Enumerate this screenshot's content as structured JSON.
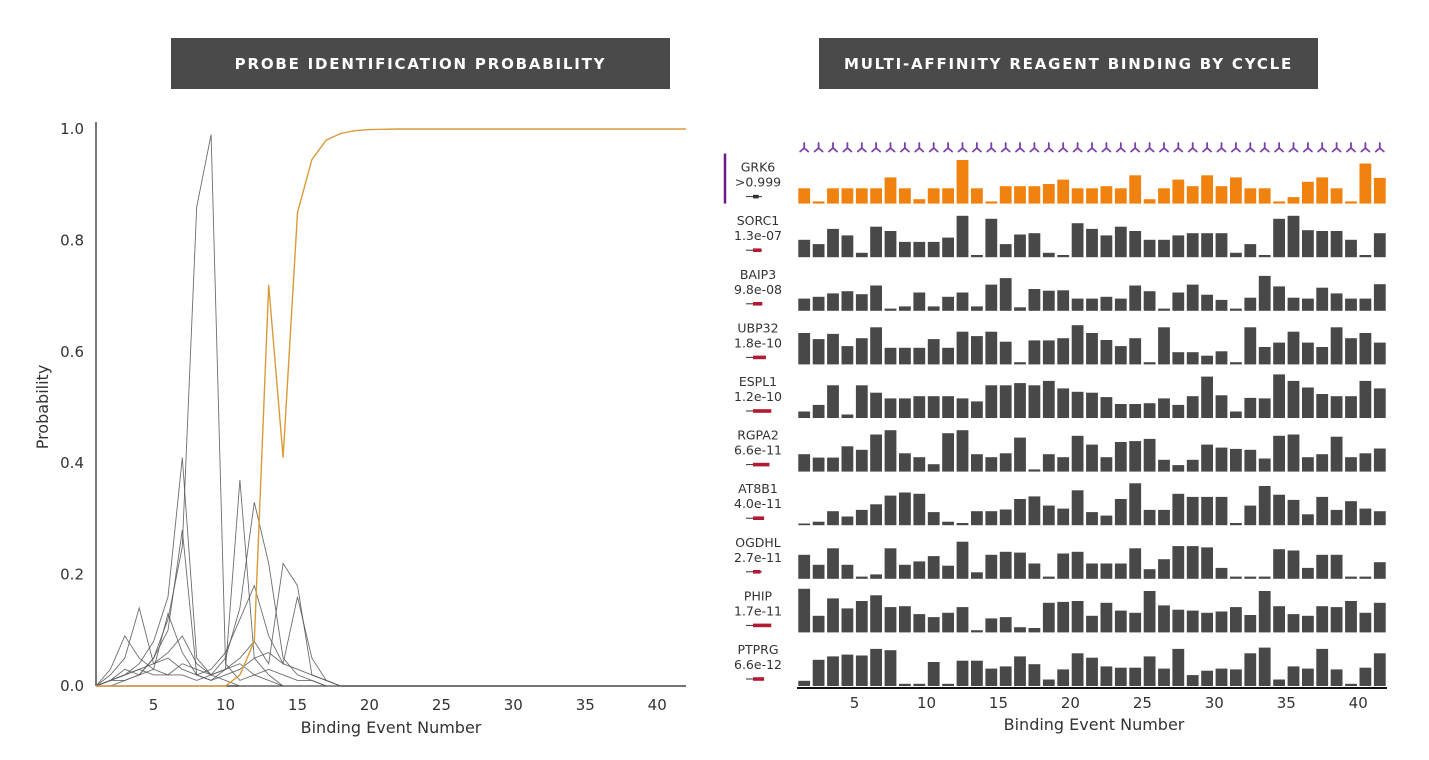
{
  "left_panel": {
    "banner": "PROBE IDENTIFICATION PROBABILITY"
  },
  "right_panel": {
    "banner": "MULTI-AFFINITY REAGENT BINDING BY CYCLE"
  },
  "colors": {
    "banner_bg": "#4a4a4a",
    "highlight": "#f0820f",
    "line_highlight": "#d99b3a",
    "bar_default": "#484848",
    "reagent_icon": "#7a3fa8",
    "selection_mark": "#6a1a8a",
    "pval_marker": "#b31b34"
  },
  "chart_data": [
    {
      "type": "line",
      "title": "PROBE IDENTIFICATION PROBABILITY",
      "xlabel": "Binding Event Number",
      "ylabel": "Probability",
      "xlim": [
        1,
        42
      ],
      "ylim": [
        0,
        1.0
      ],
      "xticks": [
        5,
        10,
        15,
        20,
        25,
        30,
        35,
        40
      ],
      "yticks": [
        0.0,
        0.2,
        0.4,
        0.6,
        0.8,
        1.0
      ],
      "highlight_series": {
        "name": "GRK6",
        "x": [
          1,
          2,
          3,
          4,
          5,
          6,
          7,
          8,
          9,
          10,
          11,
          12,
          13,
          14,
          15,
          16,
          17,
          18,
          19,
          20,
          21,
          22,
          23,
          24,
          25,
          26,
          27,
          28,
          29,
          30,
          31,
          32,
          33,
          34,
          35,
          36,
          37,
          38,
          39,
          40,
          41,
          42
        ],
        "y": [
          0,
          0,
          0,
          0,
          0,
          0,
          0,
          0,
          0,
          0,
          0.02,
          0.08,
          0.72,
          0.41,
          0.85,
          0.945,
          0.98,
          0.992,
          0.997,
          0.999,
          0.9995,
          1,
          1,
          1,
          1,
          1,
          1,
          1,
          1,
          1,
          1,
          1,
          1,
          1,
          1,
          1,
          1,
          1,
          1,
          1,
          1,
          1
        ]
      },
      "background_series": [
        {
          "x": [
            1,
            2,
            3,
            4,
            5,
            6,
            7,
            8,
            9,
            10,
            11,
            12,
            13,
            14,
            15,
            16,
            17,
            18
          ],
          "y": [
            0,
            0.01,
            0.03,
            0.02,
            0.05,
            0.12,
            0.25,
            0.86,
            0.99,
            0.04,
            0.01,
            0.02,
            0.01,
            0,
            0,
            0,
            0,
            0
          ]
        },
        {
          "x": [
            1,
            2,
            3,
            4,
            5,
            6,
            7,
            8,
            9,
            10,
            11,
            12,
            13,
            14,
            15,
            16,
            17,
            18
          ],
          "y": [
            0,
            0.01,
            0.02,
            0.04,
            0.08,
            0.16,
            0.41,
            0.05,
            0.02,
            0.01,
            0,
            0,
            0,
            0,
            0,
            0,
            0,
            0
          ]
        },
        {
          "x": [
            1,
            2,
            3,
            4,
            5,
            6,
            7,
            8,
            9,
            10,
            11,
            12,
            13,
            14,
            15,
            16,
            17,
            18
          ],
          "y": [
            0,
            0,
            0.01,
            0.02,
            0.05,
            0.1,
            0.28,
            0.02,
            0.01,
            0.03,
            0.37,
            0.05,
            0.02,
            0,
            0,
            0,
            0,
            0
          ]
        },
        {
          "x": [
            1,
            2,
            3,
            4,
            5,
            6,
            7,
            8,
            9,
            10,
            11,
            12,
            13,
            14,
            15,
            16,
            17,
            18
          ],
          "y": [
            0,
            0.01,
            0.02,
            0.03,
            0.02,
            0.02,
            0.04,
            0.03,
            0.02,
            0.05,
            0.14,
            0.33,
            0.22,
            0.05,
            0.02,
            0.01,
            0,
            0
          ]
        },
        {
          "x": [
            1,
            2,
            3,
            4,
            5,
            6,
            7,
            8,
            9,
            10,
            11,
            12,
            13,
            14,
            15,
            16,
            17,
            18
          ],
          "y": [
            0,
            0.02,
            0.05,
            0.14,
            0.04,
            0.06,
            0.09,
            0.04,
            0.02,
            0.03,
            0.05,
            0.08,
            0.04,
            0.22,
            0.18,
            0.02,
            0.01,
            0
          ]
        },
        {
          "x": [
            1,
            2,
            3,
            4,
            5,
            6,
            7,
            8,
            9,
            10,
            11,
            12,
            13,
            14,
            15,
            16,
            17,
            18
          ],
          "y": [
            0,
            0.03,
            0.09,
            0.05,
            0.03,
            0.13,
            0.06,
            0.02,
            0.03,
            0.06,
            0.12,
            0.18,
            0.09,
            0.04,
            0.16,
            0.05,
            0.01,
            0
          ]
        },
        {
          "x": [
            1,
            2,
            3,
            4,
            5,
            6,
            7,
            8,
            9,
            10,
            11,
            12,
            13,
            14,
            15,
            16,
            17,
            18
          ],
          "y": [
            0,
            0.01,
            0.02,
            0.03,
            0.04,
            0.05,
            0.03,
            0.02,
            0.01,
            0.02,
            0.03,
            0.05,
            0.06,
            0.04,
            0.03,
            0.02,
            0.01,
            0
          ]
        },
        {
          "x": [
            1,
            2,
            3,
            4,
            5,
            6,
            7,
            8,
            9,
            10,
            11,
            12,
            13,
            14,
            15,
            16,
            17,
            18
          ],
          "y": [
            0,
            0.01,
            0.01,
            0.02,
            0.03,
            0.02,
            0.02,
            0.01,
            0.02,
            0.03,
            0.04,
            0.02,
            0.03,
            0.02,
            0.01,
            0.01,
            0,
            0
          ]
        }
      ]
    },
    {
      "type": "bar",
      "title": "MULTI-AFFINITY REAGENT BINDING BY CYCLE",
      "xlabel": "Binding Event Number",
      "xlim": [
        1,
        42
      ],
      "xticks": [
        5,
        10,
        15,
        20,
        25,
        30,
        35,
        40
      ],
      "categories": [
        1,
        2,
        3,
        4,
        5,
        6,
        7,
        8,
        9,
        10,
        11,
        12,
        13,
        14,
        15,
        16,
        17,
        18,
        19,
        20,
        21,
        22,
        23,
        24,
        25,
        26,
        27,
        28,
        29,
        30,
        31,
        32,
        33,
        34,
        35,
        36,
        37,
        38,
        39,
        40,
        41
      ],
      "rows": [
        {
          "name": "GRK6",
          "pval": ">0.999",
          "highlight": true,
          "pval_marker": 0.15,
          "values": [
            0.35,
            0.05,
            0.35,
            0.35,
            0.35,
            0.35,
            0.6,
            0.35,
            0.1,
            0.35,
            0.35,
            1.0,
            0.35,
            0.05,
            0.4,
            0.4,
            0.4,
            0.45,
            0.55,
            0.35,
            0.35,
            0.4,
            0.35,
            0.65,
            0.1,
            0.35,
            0.55,
            0.4,
            0.65,
            0.4,
            0.6,
            0.35,
            0.35,
            0.05,
            0.15,
            0.5,
            0.6,
            0.35,
            0.05,
            0.92,
            0.59
          ]
        },
        {
          "name": "SORC1",
          "pval": "1.3e-07",
          "highlight": false,
          "pval_marker": 0.3,
          "values": [
            0.4,
            0.3,
            0.65,
            0.5,
            0.1,
            0.7,
            0.6,
            0.35,
            0.35,
            0.35,
            0.45,
            0.95,
            0.05,
            0.88,
            0.3,
            0.52,
            0.55,
            0.1,
            0.05,
            0.78,
            0.65,
            0.5,
            0.7,
            0.6,
            0.4,
            0.4,
            0.5,
            0.55,
            0.55,
            0.55,
            0.1,
            0.3,
            0.05,
            0.88,
            0.95,
            0.62,
            0.6,
            0.6,
            0.4,
            0.05,
            0.55
          ]
        },
        {
          "name": "BAIP3",
          "pval": "9.8e-08",
          "highlight": false,
          "pval_marker": 0.35,
          "values": [
            0.28,
            0.32,
            0.4,
            0.45,
            0.38,
            0.58,
            0.05,
            0.1,
            0.42,
            0.1,
            0.32,
            0.42,
            0.1,
            0.6,
            0.75,
            0.08,
            0.5,
            0.46,
            0.47,
            0.28,
            0.28,
            0.32,
            0.28,
            0.58,
            0.45,
            0.05,
            0.42,
            0.6,
            0.37,
            0.25,
            0.05,
            0.3,
            0.8,
            0.56,
            0.3,
            0.28,
            0.53,
            0.4,
            0.28,
            0.28,
            0.61
          ]
        },
        {
          "name": "UBP32",
          "pval": "1.8e-10",
          "highlight": false,
          "pval_marker": 0.55,
          "values": [
            0.72,
            0.58,
            0.7,
            0.42,
            0.6,
            0.85,
            0.38,
            0.38,
            0.38,
            0.58,
            0.38,
            0.75,
            0.65,
            0.75,
            0.52,
            0.05,
            0.55,
            0.55,
            0.6,
            0.9,
            0.72,
            0.56,
            0.42,
            0.6,
            0.05,
            0.85,
            0.28,
            0.28,
            0.2,
            0.3,
            0.05,
            0.85,
            0.4,
            0.5,
            0.75,
            0.5,
            0.4,
            0.85,
            0.6,
            0.72,
            0.5
          ]
        },
        {
          "name": "ESPL1",
          "pval": "1.2e-10",
          "highlight": false,
          "pval_marker": 0.85,
          "values": [
            0.15,
            0.3,
            0.75,
            0.08,
            0.75,
            0.58,
            0.45,
            0.45,
            0.5,
            0.5,
            0.5,
            0.45,
            0.38,
            0.75,
            0.75,
            0.8,
            0.75,
            0.85,
            0.68,
            0.6,
            0.58,
            0.48,
            0.32,
            0.32,
            0.34,
            0.45,
            0.3,
            0.5,
            0.95,
            0.52,
            0.15,
            0.46,
            0.45,
            1.0,
            0.85,
            0.7,
            0.55,
            0.5,
            0.5,
            0.85,
            0.68
          ]
        },
        {
          "name": "RGPA2",
          "pval": "6.6e-11",
          "highlight": false,
          "pval_marker": 0.75,
          "values": [
            0.4,
            0.32,
            0.32,
            0.58,
            0.5,
            0.85,
            0.95,
            0.42,
            0.33,
            0.17,
            0.88,
            0.95,
            0.4,
            0.33,
            0.42,
            0.78,
            0.05,
            0.4,
            0.33,
            0.82,
            0.62,
            0.33,
            0.68,
            0.7,
            0.75,
            0.27,
            0.15,
            0.27,
            0.62,
            0.55,
            0.52,
            0.5,
            0.3,
            0.82,
            0.85,
            0.33,
            0.4,
            0.8,
            0.33,
            0.42,
            0.53
          ]
        },
        {
          "name": "AT8B1",
          "pval": "4.0e-11",
          "highlight": false,
          "pval_marker": 0.45,
          "values": [
            0.04,
            0.08,
            0.32,
            0.2,
            0.35,
            0.48,
            0.68,
            0.75,
            0.72,
            0.3,
            0.08,
            0.05,
            0.32,
            0.32,
            0.36,
            0.6,
            0.66,
            0.45,
            0.38,
            0.8,
            0.3,
            0.22,
            0.6,
            0.96,
            0.35,
            0.35,
            0.72,
            0.65,
            0.65,
            0.65,
            0.05,
            0.45,
            0.9,
            0.7,
            0.58,
            0.25,
            0.65,
            0.35,
            0.55,
            0.38,
            0.32
          ]
        },
        {
          "name": "OGDHL",
          "pval": "2.7e-11",
          "highlight": false,
          "pval_marker": 0.25,
          "values": [
            0.55,
            0.32,
            0.7,
            0.32,
            0.05,
            0.1,
            0.7,
            0.32,
            0.4,
            0.52,
            0.3,
            0.85,
            0.15,
            0.55,
            0.62,
            0.6,
            0.35,
            0.05,
            0.58,
            0.62,
            0.35,
            0.35,
            0.35,
            0.7,
            0.22,
            0.45,
            0.75,
            0.75,
            0.72,
            0.25,
            0.05,
            0.05,
            0.05,
            0.68,
            0.65,
            0.25,
            0.55,
            0.55,
            0.05,
            0.05,
            0.38
          ]
        },
        {
          "name": "PHIP",
          "pval": "1.7e-11",
          "highlight": false,
          "pval_marker": 0.85,
          "values": [
            1.0,
            0.38,
            0.78,
            0.55,
            0.72,
            0.85,
            0.58,
            0.6,
            0.42,
            0.35,
            0.45,
            0.58,
            0.05,
            0.32,
            0.35,
            0.12,
            0.1,
            0.68,
            0.7,
            0.72,
            0.38,
            0.68,
            0.5,
            0.45,
            0.95,
            0.62,
            0.52,
            0.5,
            0.45,
            0.48,
            0.58,
            0.4,
            0.95,
            0.6,
            0.42,
            0.38,
            0.6,
            0.58,
            0.72,
            0.45,
            0.68
          ]
        },
        {
          "name": "PTPRG",
          "pval": "6.6e-12",
          "highlight": false,
          "pval_marker": 0.45,
          "values": [
            0.12,
            0.6,
            0.68,
            0.72,
            0.7,
            0.85,
            0.82,
            0.05,
            0.05,
            0.55,
            0.05,
            0.58,
            0.58,
            0.4,
            0.45,
            0.68,
            0.5,
            0.15,
            0.38,
            0.75,
            0.65,
            0.45,
            0.42,
            0.42,
            0.68,
            0.4,
            0.85,
            0.25,
            0.35,
            0.4,
            0.38,
            0.75,
            0.88,
            0.15,
            0.45,
            0.4,
            0.85,
            0.38,
            0.05,
            0.42,
            0.75
          ]
        }
      ]
    }
  ]
}
